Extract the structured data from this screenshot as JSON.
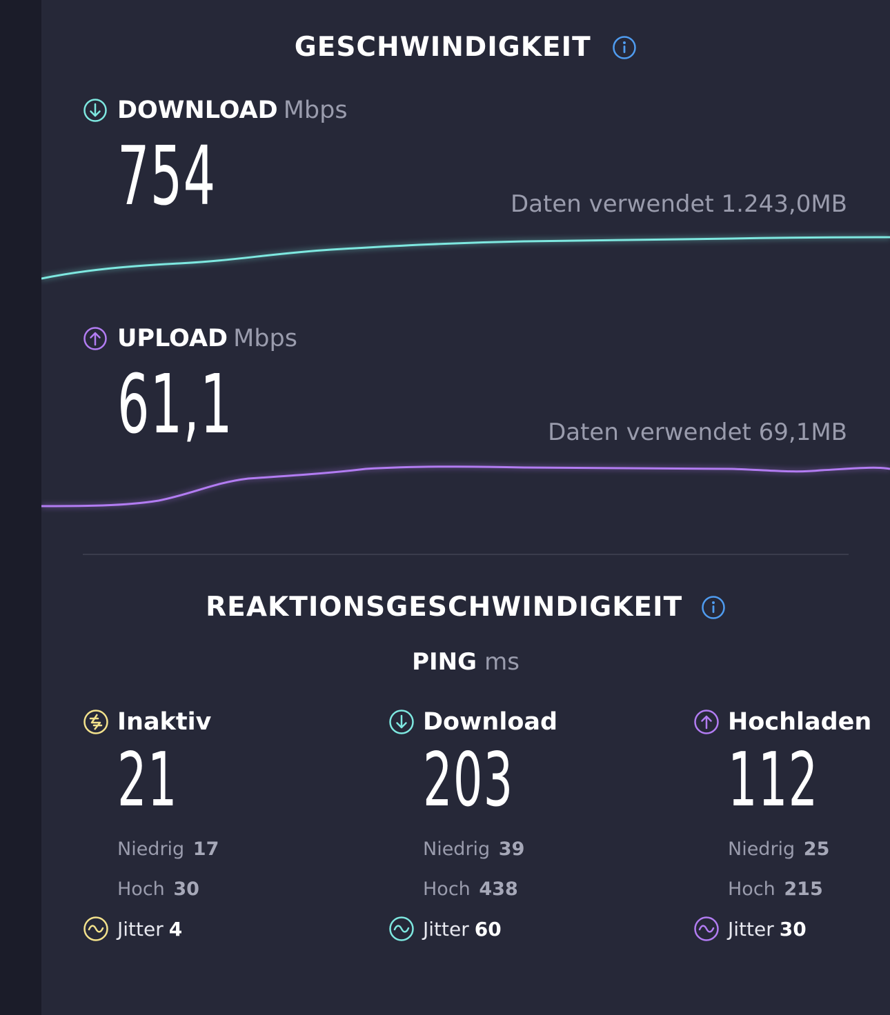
{
  "speed_section": {
    "title": "GESCHWINDIGKEIT"
  },
  "download": {
    "label": "DOWNLOAD",
    "unit": "Mbps",
    "value": "754",
    "data_used": "Daten verwendet 1.243,0MB",
    "color": "#7ee8e0"
  },
  "upload": {
    "label": "UPLOAD",
    "unit": "Mbps",
    "value": "61,1",
    "data_used": "Daten verwendet 69,1MB",
    "color": "#b27cf2"
  },
  "responsiveness_section": {
    "title": "REAKTIONSGESCHWINDIGKEIT"
  },
  "ping": {
    "label": "PING",
    "unit": "ms",
    "idle": {
      "label": "Inaktiv",
      "value": "21",
      "low_label": "Niedrig",
      "low": "17",
      "high_label": "Hoch",
      "high": "30",
      "jitter_label": "Jitter",
      "jitter": "4",
      "color": "#f3e28c"
    },
    "download": {
      "label": "Download",
      "value": "203",
      "low_label": "Niedrig",
      "low": "39",
      "high_label": "Hoch",
      "high": "438",
      "jitter_label": "Jitter",
      "jitter": "60",
      "color": "#7ee8e0"
    },
    "upload": {
      "label": "Hochladen",
      "value": "112",
      "low_label": "Niedrig",
      "low": "25",
      "high_label": "Hoch",
      "high": "215",
      "jitter_label": "Jitter",
      "jitter": "30",
      "color": "#b27cf2"
    }
  },
  "icons": {
    "info": "info-icon",
    "download": "arrow-down-circle-icon",
    "upload": "arrow-up-circle-icon",
    "idle": "idle-circle-icon",
    "jitter": "wave-circle-icon"
  },
  "accent_info_color": "#4f9cf0"
}
